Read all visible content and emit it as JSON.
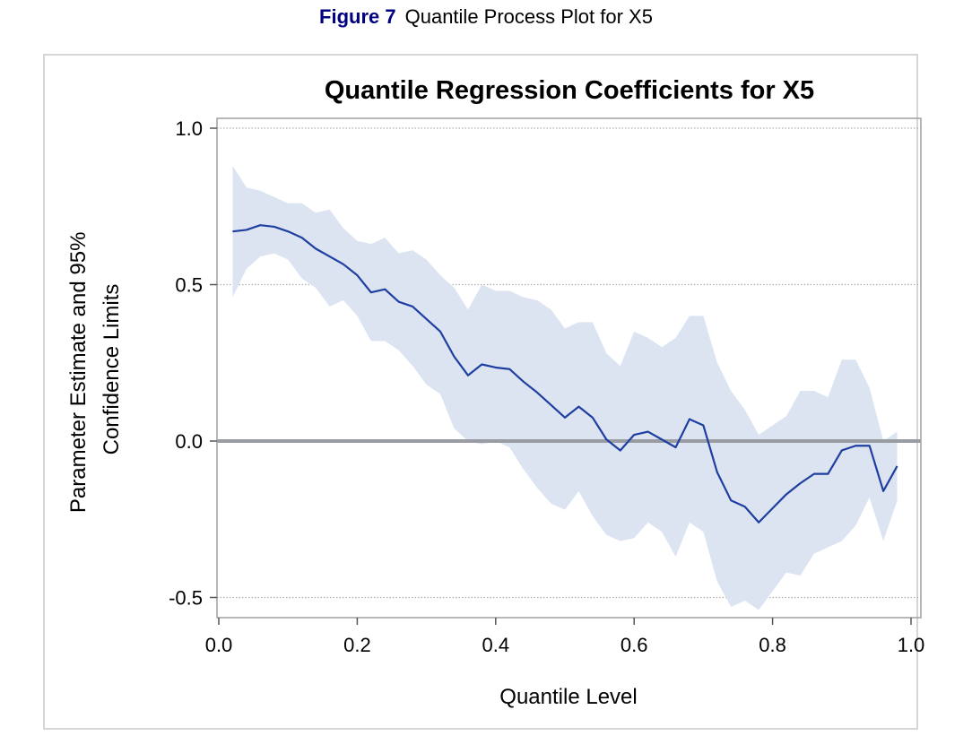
{
  "caption": {
    "figure_number": "Figure 7",
    "text": "Quantile Process Plot for X5"
  },
  "chart_data": {
    "type": "line",
    "title": "Quantile Regression Coefficients for X5",
    "xlabel": "Quantile Level",
    "ylabel": [
      "Parameter Estimate and 95%",
      "Confidence Limits"
    ],
    "xlim": [
      0.0,
      1.0
    ],
    "ylim": [
      -0.55,
      1.0
    ],
    "xticks": [
      0.0,
      0.2,
      0.4,
      0.6,
      0.8,
      1.0
    ],
    "yticks": [
      -0.5,
      0.0,
      0.5,
      1.0
    ],
    "xtick_labels": [
      "0.0",
      "0.2",
      "0.4",
      "0.6",
      "0.8",
      "1.0"
    ],
    "ytick_labels": [
      "-0.5",
      "0.0",
      "0.5",
      "1.0"
    ],
    "reference_line": {
      "y": 0.0,
      "color": "#999da3"
    },
    "grid": "horizontal dotted",
    "colors": {
      "line": "#1f3fa0",
      "band": "#dce4f2",
      "grid": "#b0b0b0",
      "axis": "#a0a0a0"
    },
    "x": [
      0.02,
      0.04,
      0.06,
      0.08,
      0.1,
      0.12,
      0.14,
      0.16,
      0.18,
      0.2,
      0.22,
      0.24,
      0.26,
      0.28,
      0.3,
      0.32,
      0.34,
      0.36,
      0.38,
      0.4,
      0.42,
      0.44,
      0.46,
      0.48,
      0.5,
      0.52,
      0.54,
      0.56,
      0.58,
      0.6,
      0.62,
      0.64,
      0.66,
      0.68,
      0.7,
      0.72,
      0.74,
      0.76,
      0.78,
      0.8,
      0.82,
      0.84,
      0.86,
      0.88,
      0.9,
      0.92,
      0.94,
      0.96,
      0.98
    ],
    "series": [
      {
        "values": [
          0.67,
          0.675,
          0.69,
          0.685,
          0.67,
          0.65,
          0.615,
          0.59,
          0.565,
          0.53,
          0.475,
          0.485,
          0.445,
          0.43,
          0.39,
          0.35,
          0.27,
          0.21,
          0.245,
          0.235,
          0.23,
          0.19,
          0.155,
          0.115,
          0.075,
          0.11,
          0.075,
          0.005,
          -0.03,
          0.02,
          0.03,
          0.005,
          -0.02,
          0.07,
          0.05,
          -0.1,
          -0.19,
          -0.21,
          -0.26,
          -0.215,
          -0.17,
          -0.135,
          -0.105,
          -0.105,
          -0.03,
          -0.015,
          -0.015,
          -0.16,
          -0.08
        ]
      }
    ],
    "band": {
      "upper": [
        0.88,
        0.81,
        0.8,
        0.78,
        0.76,
        0.76,
        0.73,
        0.74,
        0.68,
        0.64,
        0.63,
        0.65,
        0.6,
        0.61,
        0.58,
        0.53,
        0.49,
        0.42,
        0.5,
        0.48,
        0.48,
        0.46,
        0.45,
        0.42,
        0.36,
        0.38,
        0.38,
        0.28,
        0.24,
        0.35,
        0.33,
        0.3,
        0.33,
        0.4,
        0.4,
        0.25,
        0.16,
        0.1,
        0.02,
        0.05,
        0.08,
        0.16,
        0.16,
        0.14,
        0.26,
        0.26,
        0.17,
        0.0,
        0.03
      ],
      "lower": [
        0.46,
        0.55,
        0.59,
        0.6,
        0.58,
        0.52,
        0.49,
        0.43,
        0.45,
        0.4,
        0.32,
        0.32,
        0.29,
        0.24,
        0.18,
        0.15,
        0.04,
        0.0,
        -0.01,
        0.0,
        -0.02,
        -0.09,
        -0.15,
        -0.2,
        -0.22,
        -0.16,
        -0.24,
        -0.3,
        -0.32,
        -0.31,
        -0.26,
        -0.29,
        -0.37,
        -0.26,
        -0.29,
        -0.45,
        -0.53,
        -0.51,
        -0.54,
        -0.48,
        -0.42,
        -0.43,
        -0.36,
        -0.34,
        -0.32,
        -0.27,
        -0.18,
        -0.32,
        -0.19
      ]
    }
  }
}
